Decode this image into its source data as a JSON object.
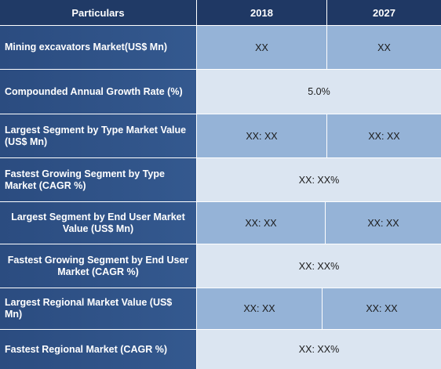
{
  "header": {
    "particulars": "Particulars",
    "year_1": "2018",
    "year_2": "2027"
  },
  "rows": [
    {
      "label": "Mining excavators Market(US$ Mn)",
      "v1": "XX",
      "v2": "XX"
    },
    {
      "label": "Compounded Annual Growth Rate (%)",
      "merged": "5.0%"
    },
    {
      "label": "Largest Segment by Type  Market Value (US$ Mn)",
      "v1": "XX: XX",
      "v2": "XX: XX"
    },
    {
      "label": "Fastest Growing Segment by Type Market (CAGR %)",
      "merged": "XX: XX%"
    },
    {
      "label": "Largest Segment by End User Market Value (US$ Mn)",
      "v1": "XX: XX",
      "v2": "XX: XX"
    },
    {
      "label": "Fastest Growing Segment by End User Market (CAGR %)",
      "merged": "XX: XX%"
    },
    {
      "label": "Largest Regional Market Value (US$ Mn)",
      "v1": "XX: XX",
      "v2": "XX: XX"
    },
    {
      "label": "Fastest Regional Market (CAGR %)",
      "merged": "XX: XX%"
    }
  ]
}
